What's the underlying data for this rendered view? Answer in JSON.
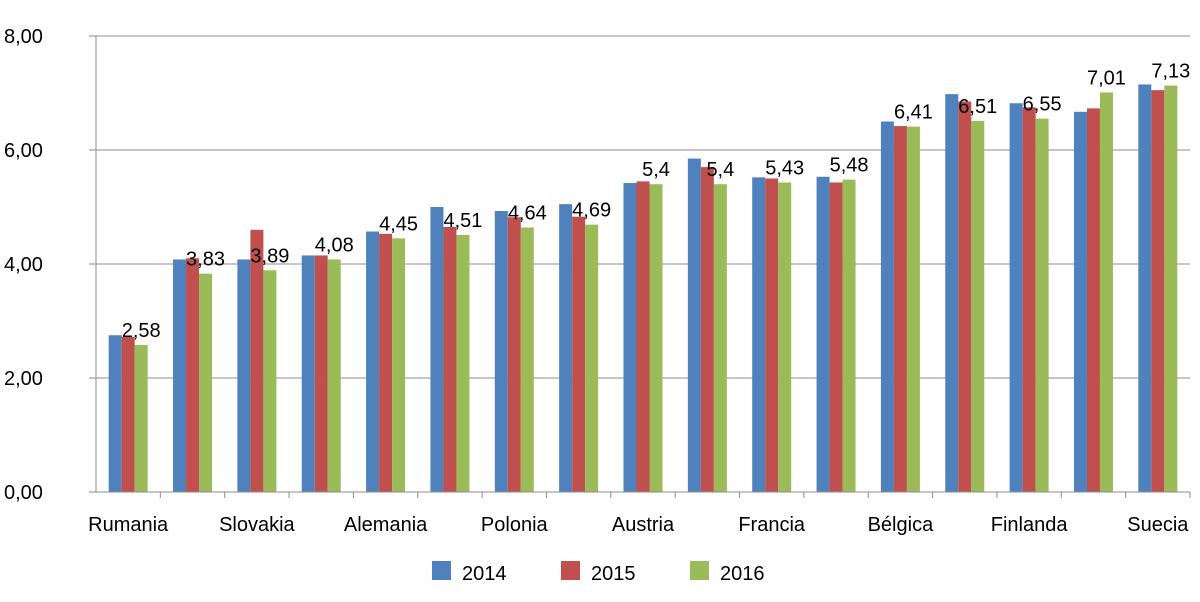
{
  "chart_data": {
    "type": "bar",
    "title": "",
    "xlabel": "",
    "ylabel": "",
    "ylim": [
      0,
      8
    ],
    "yticks": [
      "0,00",
      "2,00",
      "4,00",
      "6,00",
      "8,00"
    ],
    "grid": "horizontal",
    "legend_position": "bottom",
    "categories": [
      "Rumania",
      "",
      "Slovakia",
      "",
      "Alemania",
      "",
      "Polonia",
      "",
      "Austria",
      "",
      "Francia",
      "",
      "Bélgica",
      "",
      "Finlanda",
      "",
      "Suecia"
    ],
    "series": [
      {
        "name": "2014",
        "color": "#4f81bd",
        "values": [
          2.75,
          4.08,
          4.08,
          4.15,
          4.57,
          5.0,
          4.93,
          5.05,
          5.42,
          5.85,
          5.52,
          5.53,
          6.5,
          6.98,
          6.82,
          6.67,
          7.15
        ]
      },
      {
        "name": "2015",
        "color": "#c0504d",
        "values": [
          2.72,
          4.1,
          4.6,
          4.15,
          4.53,
          4.65,
          4.82,
          4.83,
          5.45,
          5.7,
          5.5,
          5.43,
          6.42,
          6.85,
          6.75,
          6.73,
          7.05
        ]
      },
      {
        "name": "2016",
        "color": "#9bbb59",
        "values": [
          2.58,
          3.83,
          3.89,
          4.08,
          4.45,
          4.51,
          4.64,
          4.69,
          5.4,
          5.4,
          5.43,
          5.48,
          6.41,
          6.51,
          6.55,
          7.01,
          7.13
        ]
      }
    ],
    "data_labels": [
      "2,58",
      "3,83",
      "3,89",
      "4,08",
      "4,45",
      "4,51",
      "4,64",
      "4,69",
      "5,4",
      "5,4",
      "5,43",
      "5,48",
      "6,41",
      "6,51",
      "6,55",
      "7,01",
      "7,13"
    ]
  }
}
